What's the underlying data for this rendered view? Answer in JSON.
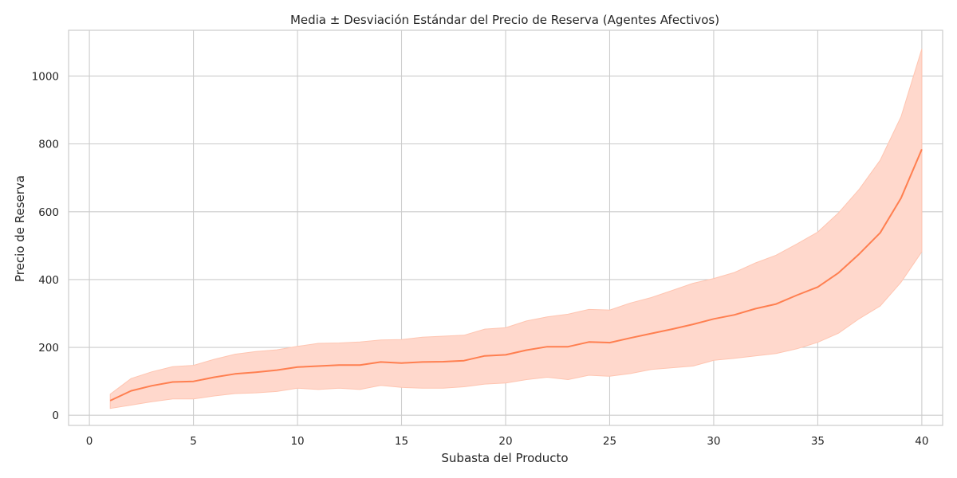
{
  "chart_data": {
    "type": "line",
    "title": "Media ± Desviación Estándar del Precio de Reserva (Agentes Afectivos)",
    "xlabel": "Subasta del Producto",
    "ylabel": "Precio de Reserva",
    "xlim": [
      -1,
      41
    ],
    "ylim": [
      -30,
      1135
    ],
    "xticks": [
      0,
      5,
      10,
      15,
      20,
      25,
      30,
      35,
      40
    ],
    "yticks": [
      0,
      200,
      400,
      600,
      800,
      1000
    ],
    "grid": true,
    "colors": {
      "line": "#ff7f50",
      "band": "#ffd8cc",
      "band_edge": "#ffc5b1"
    },
    "series": [
      {
        "x": [
          1,
          2,
          3,
          4,
          5,
          6,
          7,
          8,
          9,
          10,
          11,
          12,
          13,
          14,
          15,
          16,
          17,
          18,
          19,
          20,
          21,
          22,
          23,
          24,
          25,
          26,
          27,
          28,
          29,
          30,
          31,
          32,
          33,
          34,
          35,
          36,
          37,
          38,
          39,
          40
        ],
        "mean": [
          43,
          72,
          87,
          98,
          100,
          112,
          122,
          127,
          133,
          142,
          145,
          148,
          148,
          157,
          154,
          157,
          158,
          161,
          175,
          178,
          192,
          202,
          202,
          216,
          214,
          228,
          241,
          254,
          268,
          284,
          296,
          314,
          328,
          354,
          378,
          420,
          476,
          538,
          640,
          784
        ],
        "lower": [
          20,
          30,
          40,
          48,
          48,
          57,
          64,
          66,
          70,
          80,
          76,
          80,
          76,
          88,
          82,
          80,
          80,
          84,
          92,
          95,
          105,
          112,
          105,
          118,
          115,
          123,
          135,
          140,
          145,
          162,
          168,
          175,
          182,
          196,
          215,
          242,
          285,
          322,
          392,
          482
        ],
        "upper": [
          62,
          108,
          128,
          143,
          147,
          165,
          180,
          188,
          193,
          203,
          212,
          213,
          216,
          222,
          223,
          230,
          233,
          236,
          254,
          258,
          278,
          290,
          298,
          312,
          310,
          331,
          347,
          368,
          389,
          403,
          421,
          449,
          472,
          505,
          540,
          597,
          667,
          752,
          880,
          1080
        ]
      }
    ]
  }
}
